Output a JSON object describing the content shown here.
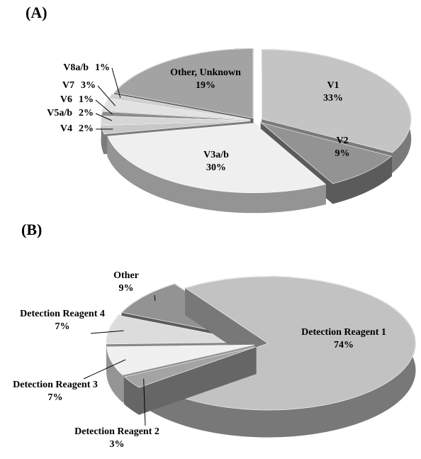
{
  "chart_data": [
    {
      "type": "pie",
      "title": "(A)",
      "categories": [
        "V1",
        "V2",
        "V3a/b",
        "V4",
        "V5a/b",
        "V6",
        "V7",
        "V8a/b",
        "Other, Unknown"
      ],
      "values": [
        33,
        9,
        30,
        2,
        2,
        1,
        3,
        1,
        19
      ],
      "value_labels": [
        "33%",
        "9%",
        "30%",
        "2%",
        "2%",
        "1%",
        "3%",
        "1%",
        "19%"
      ],
      "colors": [
        "#c4c4c4",
        "#939393",
        "#efefef",
        "#c8c8c8",
        "#d6d6d6",
        "#8c8c8c",
        "#e2e2e2",
        "#cfcfcf",
        "#a3a3a3"
      ]
    },
    {
      "type": "pie",
      "title": "(B)",
      "categories": [
        "Detection Reagent 1",
        "Detection Reagent 2",
        "Detection Reagent 3",
        "Detection Reagent 4",
        "Other"
      ],
      "values": [
        74,
        3,
        7,
        7,
        9
      ],
      "value_labels": [
        "74%",
        "3%",
        "7%",
        "7%",
        "9%"
      ],
      "colors": [
        "#c2c2c2",
        "#a4a4a4",
        "#f0f0f0",
        "#dcdcdc",
        "#939393"
      ]
    }
  ]
}
